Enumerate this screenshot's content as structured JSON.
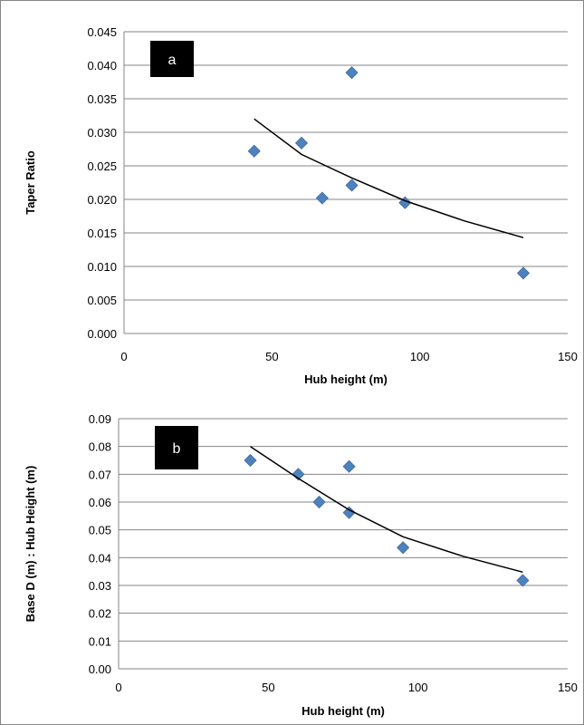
{
  "chart_data": [
    {
      "type": "scatter",
      "panel_label": "a",
      "xlabel": "Hub height (m)",
      "ylabel": "Taper Ratio",
      "xlim": [
        0,
        150
      ],
      "ylim": [
        0,
        0.045
      ],
      "x_ticks": [
        "0",
        "50",
        "100",
        "150"
      ],
      "y_ticks": [
        "0.000",
        "0.005",
        "0.010",
        "0.015",
        "0.020",
        "0.025",
        "0.030",
        "0.035",
        "0.040",
        "0.045"
      ],
      "grid": true,
      "legend": "none",
      "marker_color": "#4f81bd",
      "series": [
        {
          "x": [
            44,
            60,
            67,
            77,
            77,
            95,
            135
          ],
          "y": [
            0.0272,
            0.0284,
            0.0202,
            0.0389,
            0.0221,
            0.0195,
            0.009
          ]
        }
      ],
      "trendline": {
        "x": [
          44,
          60,
          77,
          95,
          115,
          135
        ],
        "y": [
          0.032,
          0.0267,
          0.0232,
          0.0198,
          0.0168,
          0.0143
        ]
      }
    },
    {
      "type": "scatter",
      "panel_label": "b",
      "xlabel": "Hub height (m)",
      "ylabel": "Base D (m) : Hub Height (m)",
      "xlim": [
        0,
        150
      ],
      "ylim": [
        0,
        0.09
      ],
      "x_ticks": [
        "0",
        "50",
        "100",
        "150"
      ],
      "y_ticks": [
        "0.00",
        "0.01",
        "0.02",
        "0.03",
        "0.04",
        "0.05",
        "0.06",
        "0.07",
        "0.08",
        "0.09"
      ],
      "grid": true,
      "legend": "none",
      "marker_color": "#4f81bd",
      "series": [
        {
          "x": [
            44,
            60,
            67,
            77,
            77,
            95,
            135
          ],
          "y": [
            0.075,
            0.07,
            0.06,
            0.0728,
            0.0562,
            0.0436,
            0.0318
          ]
        }
      ],
      "trendline": {
        "x": [
          44,
          60,
          77,
          95,
          115,
          135
        ],
        "y": [
          0.08,
          0.0685,
          0.0572,
          0.0475,
          0.0405,
          0.0348
        ]
      }
    }
  ]
}
